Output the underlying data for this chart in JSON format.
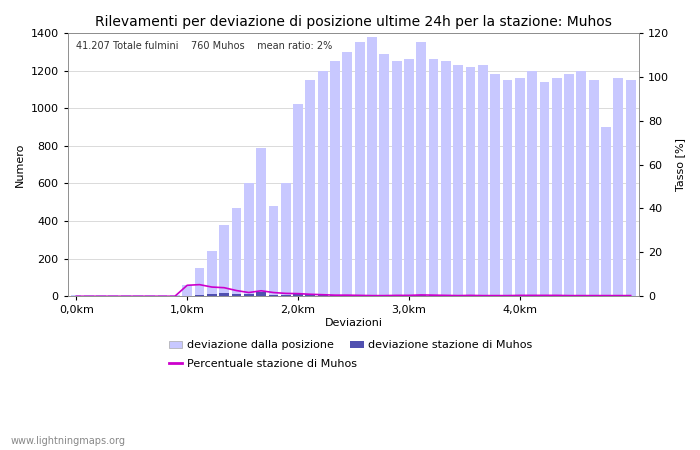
{
  "title": "Rilevamenti per deviazione di posizione ultime 24h per la stazione: Muhos",
  "subtitle": "41.207 Totale fulmini    760 Muhos    mean ratio: 2%",
  "xlabel": "Deviazioni",
  "ylabel_left": "Numero",
  "ylabel_right": "Tasso [%]",
  "watermark": "www.lightningmaps.org",
  "x_tick_labels": [
    "0,0km",
    "1,0km",
    "2,0km",
    "3,0km",
    "4,0km"
  ],
  "x_tick_positions": [
    0,
    9,
    18,
    27,
    36
  ],
  "ylim_left": [
    0,
    1400
  ],
  "ylim_right": [
    0,
    120
  ],
  "yticks_left": [
    0,
    200,
    400,
    600,
    800,
    1000,
    1200,
    1400
  ],
  "yticks_right": [
    0,
    20,
    40,
    60,
    80,
    100,
    120
  ],
  "bars_total": [
    5,
    5,
    5,
    5,
    5,
    5,
    5,
    5,
    5,
    60,
    150,
    240,
    380,
    470,
    600,
    790,
    480,
    600,
    1020,
    1150,
    1200,
    1250,
    1300,
    1350,
    1380,
    1290,
    1250,
    1260,
    1350,
    1260,
    1250,
    1230,
    1220,
    1230,
    1180,
    1150,
    1160,
    1200,
    1140,
    1160,
    1180,
    1200,
    1150,
    900,
    1160,
    1150
  ],
  "bars_muhos": [
    0,
    0,
    0,
    0,
    0,
    0,
    0,
    0,
    0,
    3,
    8,
    10,
    15,
    12,
    10,
    20,
    8,
    8,
    12,
    10,
    8,
    6,
    7,
    5,
    4,
    4,
    5,
    5,
    8,
    6,
    5,
    4,
    5,
    4,
    4,
    3,
    5,
    5,
    4,
    5,
    4,
    4,
    4,
    3,
    4,
    4
  ],
  "percent_line": [
    0,
    0,
    0,
    0,
    0,
    0,
    0,
    0,
    0,
    5.0,
    5.3,
    4.2,
    3.9,
    2.6,
    1.7,
    2.5,
    1.7,
    1.3,
    1.2,
    0.9,
    0.7,
    0.5,
    0.5,
    0.4,
    0.3,
    0.3,
    0.4,
    0.4,
    0.6,
    0.5,
    0.4,
    0.3,
    0.4,
    0.3,
    0.3,
    0.3,
    0.4,
    0.4,
    0.4,
    0.4,
    0.3,
    0.3,
    0.3,
    0.3,
    0.3,
    0.3
  ],
  "bar_color_total": "#c8c8ff",
  "bar_color_muhos": "#5050b0",
  "line_color_percent": "#cc00cc",
  "background_color": "#ffffff",
  "grid_color": "#cccccc",
  "title_fontsize": 10,
  "label_fontsize": 8,
  "tick_fontsize": 8,
  "legend_fontsize": 8
}
